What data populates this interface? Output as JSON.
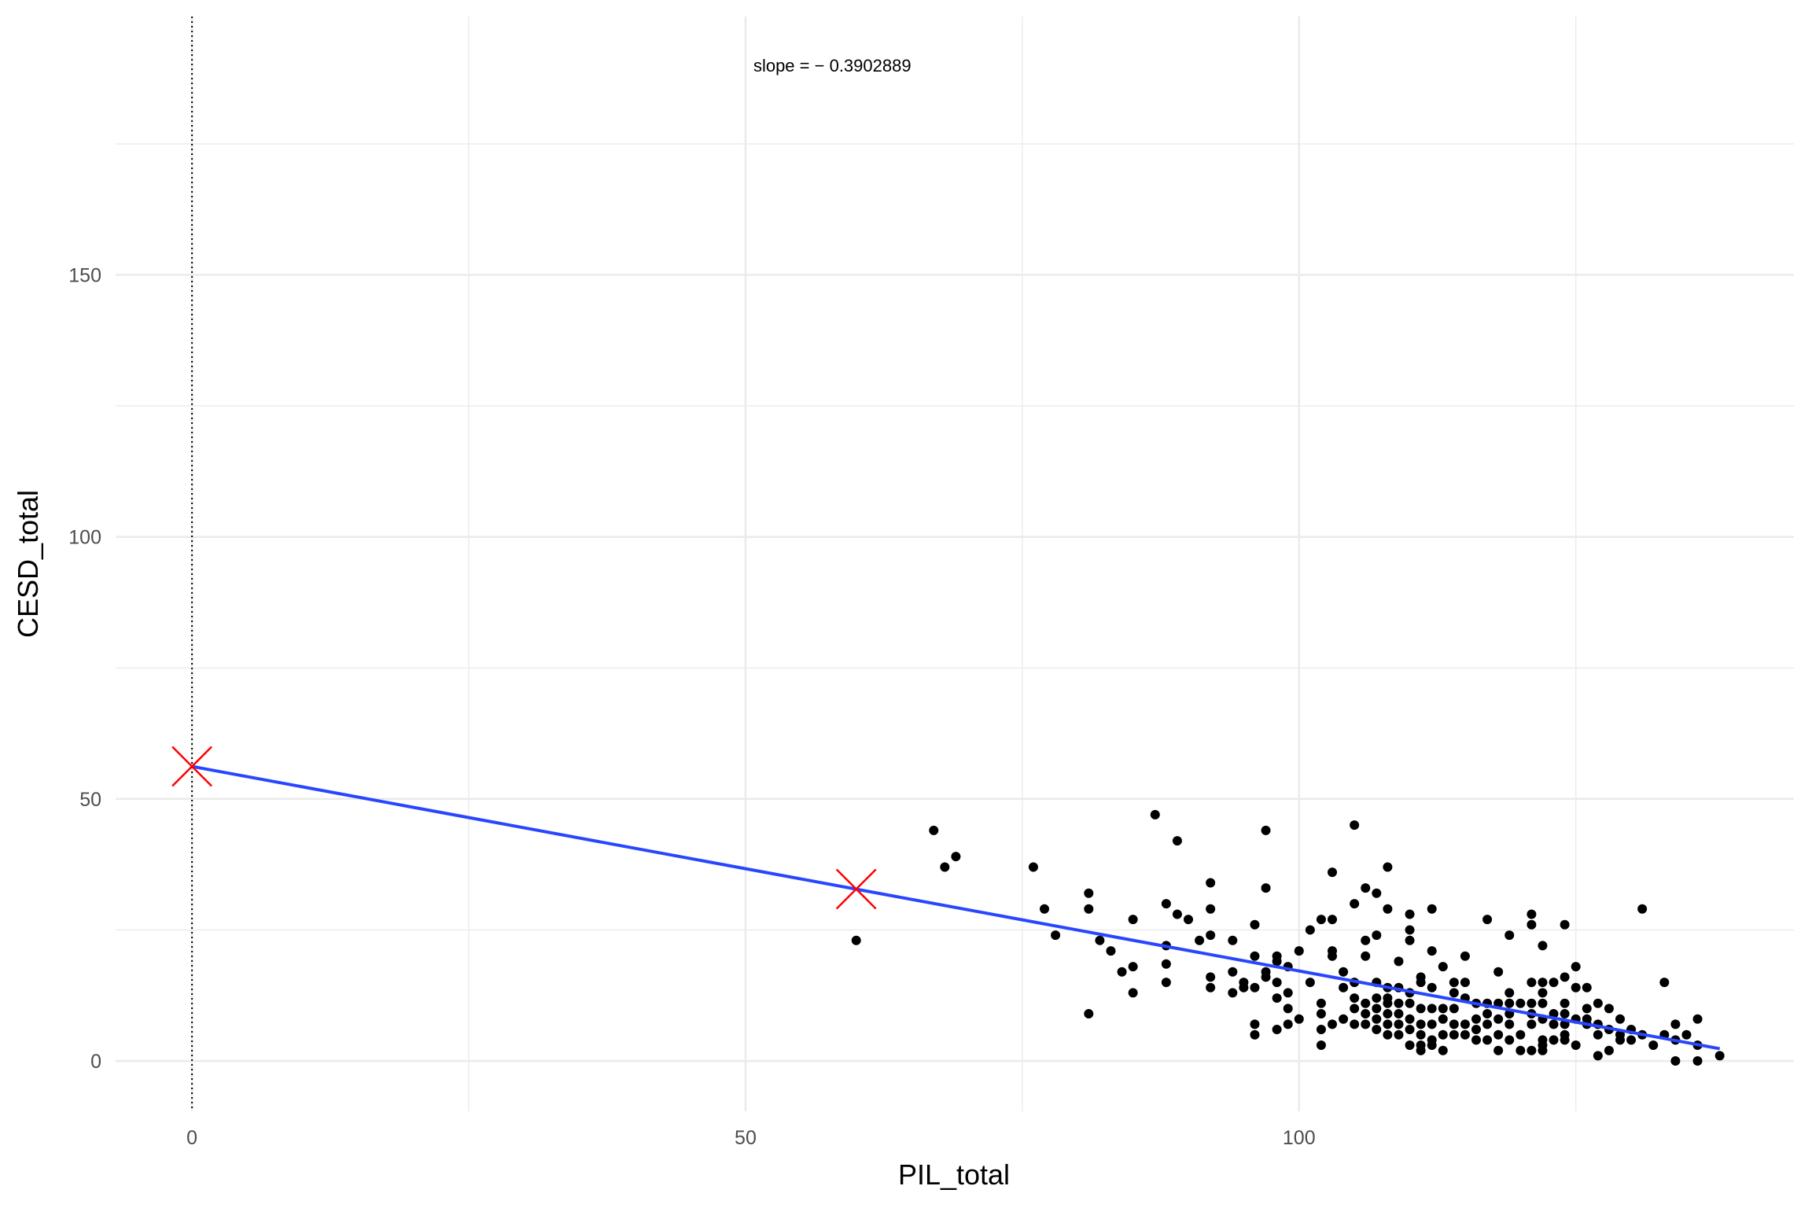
{
  "chart_data": {
    "type": "scatter",
    "title": "",
    "xlabel": "PIL_total",
    "ylabel": "CESD_total",
    "xlim": [
      -6.9,
      144.7
    ],
    "ylim": [
      -9.6,
      199.3
    ],
    "x_ticks": [
      0,
      50,
      100
    ],
    "x_tick_labels": [
      "0",
      "50",
      "100"
    ],
    "y_ticks": [
      0,
      50,
      100,
      150
    ],
    "y_tick_labels": [
      "0",
      "50",
      "100",
      "150"
    ],
    "grid": true,
    "annotation": "slope = − 0.3902889",
    "annotation_at": [
      50,
      190
    ],
    "vline_x": 0,
    "regression": {
      "intercept": 56.2,
      "slope": -0.3902889,
      "x_range": [
        0,
        138
      ],
      "color": "#2946ff"
    },
    "highlight_points": {
      "color": "#ff0000",
      "points": [
        [
          0,
          56.2
        ],
        [
          60,
          32.8
        ]
      ]
    },
    "point_color": "#000000",
    "points": [
      [
        60,
        23
      ],
      [
        67,
        44
      ],
      [
        68,
        37
      ],
      [
        69,
        39
      ],
      [
        76,
        37
      ],
      [
        77,
        29
      ],
      [
        78,
        24
      ],
      [
        81,
        32
      ],
      [
        81,
        29
      ],
      [
        81,
        9
      ],
      [
        82,
        23
      ],
      [
        83,
        21
      ],
      [
        84,
        17
      ],
      [
        85,
        27
      ],
      [
        85,
        18
      ],
      [
        85,
        13
      ],
      [
        87,
        47
      ],
      [
        88,
        30
      ],
      [
        88,
        22
      ],
      [
        88,
        18.5
      ],
      [
        88,
        15
      ],
      [
        89,
        42
      ],
      [
        89,
        28
      ],
      [
        90,
        27
      ],
      [
        91,
        23
      ],
      [
        92,
        34
      ],
      [
        92,
        29
      ],
      [
        92,
        24
      ],
      [
        92,
        16
      ],
      [
        92,
        14
      ],
      [
        94,
        23
      ],
      [
        94,
        17
      ],
      [
        94,
        13
      ],
      [
        95,
        15
      ],
      [
        95,
        14
      ],
      [
        96,
        26
      ],
      [
        96,
        20
      ],
      [
        96,
        14
      ],
      [
        96,
        7
      ],
      [
        96,
        5
      ],
      [
        97,
        44
      ],
      [
        97,
        33
      ],
      [
        97,
        17
      ],
      [
        97,
        16
      ],
      [
        98,
        20
      ],
      [
        98,
        19
      ],
      [
        98,
        15
      ],
      [
        98,
        12
      ],
      [
        98,
        6
      ],
      [
        99,
        18
      ],
      [
        99,
        13
      ],
      [
        99,
        10
      ],
      [
        99,
        7
      ],
      [
        100,
        21
      ],
      [
        100,
        8
      ],
      [
        101,
        25
      ],
      [
        101,
        15
      ],
      [
        102,
        27
      ],
      [
        102,
        11
      ],
      [
        102,
        9
      ],
      [
        102,
        6
      ],
      [
        102,
        3
      ],
      [
        103,
        36
      ],
      [
        103,
        27
      ],
      [
        103,
        21
      ],
      [
        103,
        20
      ],
      [
        103,
        7
      ],
      [
        104,
        17
      ],
      [
        104,
        14
      ],
      [
        104,
        8
      ],
      [
        105,
        45
      ],
      [
        105,
        30
      ],
      [
        105,
        15
      ],
      [
        105,
        12
      ],
      [
        105,
        10
      ],
      [
        105,
        7
      ],
      [
        106,
        33
      ],
      [
        106,
        23
      ],
      [
        106,
        20
      ],
      [
        106,
        11
      ],
      [
        106,
        9
      ],
      [
        106,
        7
      ],
      [
        107,
        32
      ],
      [
        107,
        24
      ],
      [
        107,
        15
      ],
      [
        107,
        12
      ],
      [
        107,
        10
      ],
      [
        107,
        8
      ],
      [
        107,
        6
      ],
      [
        108,
        37
      ],
      [
        108,
        29
      ],
      [
        108,
        14
      ],
      [
        108,
        12
      ],
      [
        108,
        11
      ],
      [
        108,
        9
      ],
      [
        108,
        7
      ],
      [
        108,
        5
      ],
      [
        109,
        19
      ],
      [
        109,
        14
      ],
      [
        109,
        11
      ],
      [
        109,
        9
      ],
      [
        109,
        7
      ],
      [
        109,
        5
      ],
      [
        110,
        28
      ],
      [
        110,
        25
      ],
      [
        110,
        23
      ],
      [
        110,
        13
      ],
      [
        110,
        11
      ],
      [
        110,
        8
      ],
      [
        110,
        6
      ],
      [
        110,
        3
      ],
      [
        111,
        16
      ],
      [
        111,
        15
      ],
      [
        111,
        10
      ],
      [
        111,
        7
      ],
      [
        111,
        5
      ],
      [
        111,
        3
      ],
      [
        111,
        2
      ],
      [
        112,
        29
      ],
      [
        112,
        21
      ],
      [
        112,
        14
      ],
      [
        112,
        10
      ],
      [
        112,
        7
      ],
      [
        112,
        4
      ],
      [
        112,
        3
      ],
      [
        113,
        18
      ],
      [
        113,
        10
      ],
      [
        113,
        8
      ],
      [
        113,
        5
      ],
      [
        113,
        2
      ],
      [
        114,
        15
      ],
      [
        114,
        13
      ],
      [
        114,
        10
      ],
      [
        114,
        7
      ],
      [
        114,
        5
      ],
      [
        115,
        20
      ],
      [
        115,
        15
      ],
      [
        115,
        12
      ],
      [
        115,
        7
      ],
      [
        115,
        5
      ],
      [
        116,
        11
      ],
      [
        116,
        8
      ],
      [
        116,
        6
      ],
      [
        116,
        4
      ],
      [
        117,
        27
      ],
      [
        117,
        11
      ],
      [
        117,
        9
      ],
      [
        117,
        7
      ],
      [
        117,
        4
      ],
      [
        118,
        17
      ],
      [
        118,
        11
      ],
      [
        118,
        8
      ],
      [
        118,
        5
      ],
      [
        118,
        2
      ],
      [
        119,
        24
      ],
      [
        119,
        13
      ],
      [
        119,
        11
      ],
      [
        119,
        9
      ],
      [
        119,
        7
      ],
      [
        119,
        4
      ],
      [
        120,
        11
      ],
      [
        120,
        5
      ],
      [
        120,
        2
      ],
      [
        121,
        28
      ],
      [
        121,
        26
      ],
      [
        121,
        15
      ],
      [
        121,
        11
      ],
      [
        121,
        9
      ],
      [
        121,
        7
      ],
      [
        121,
        2
      ],
      [
        122,
        22
      ],
      [
        122,
        15
      ],
      [
        122,
        13
      ],
      [
        122,
        11
      ],
      [
        122,
        8
      ],
      [
        122,
        4
      ],
      [
        122,
        3
      ],
      [
        122,
        2
      ],
      [
        123,
        15
      ],
      [
        123,
        9
      ],
      [
        123,
        7
      ],
      [
        123,
        4
      ],
      [
        124,
        26
      ],
      [
        124,
        16
      ],
      [
        124,
        11
      ],
      [
        124,
        9
      ],
      [
        124,
        7
      ],
      [
        124,
        5
      ],
      [
        124,
        4
      ],
      [
        125,
        18
      ],
      [
        125,
        14
      ],
      [
        125,
        8
      ],
      [
        125,
        3
      ],
      [
        126,
        14
      ],
      [
        126,
        10
      ],
      [
        126,
        8
      ],
      [
        126,
        7
      ],
      [
        127,
        11
      ],
      [
        127,
        7
      ],
      [
        127,
        5
      ],
      [
        127,
        1
      ],
      [
        128,
        10
      ],
      [
        128,
        6
      ],
      [
        128,
        2
      ],
      [
        129,
        8
      ],
      [
        129,
        5
      ],
      [
        129,
        4
      ],
      [
        130,
        6
      ],
      [
        130,
        4
      ],
      [
        131,
        29
      ],
      [
        131,
        5
      ],
      [
        132,
        3
      ],
      [
        133,
        15
      ],
      [
        133,
        5
      ],
      [
        134,
        7
      ],
      [
        134,
        4
      ],
      [
        134,
        0
      ],
      [
        135,
        5
      ],
      [
        136,
        8
      ],
      [
        136,
        3
      ],
      [
        136,
        0
      ],
      [
        138,
        1
      ]
    ]
  }
}
